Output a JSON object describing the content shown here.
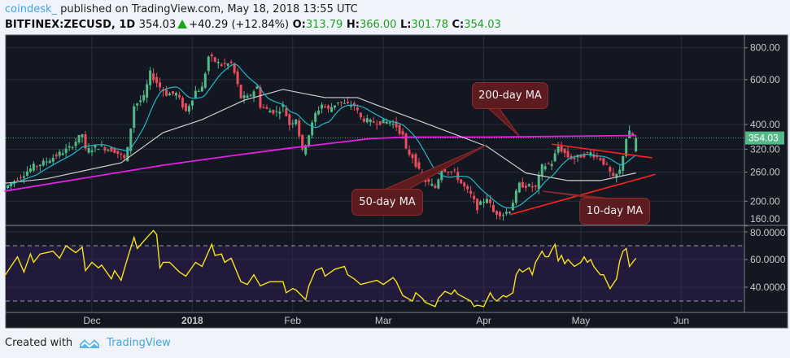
{
  "header": {
    "user": "coindesk_",
    "published": "published on TradingView.com, May 18, 2018 13:55 UTC",
    "symbol": "BITFINEX:ZECUSD, 1D",
    "last": "354.03",
    "change": "+40.29 (+12.84%)",
    "o_label": "O:",
    "o": "313.79",
    "h_label": "H:",
    "h": "366.00",
    "l_label": "L:",
    "l": "301.78",
    "c_label": "C:",
    "c": "354.03"
  },
  "annotations": {
    "ma200": "200-day MA",
    "ma50": "50-day MA",
    "ma10": "10-day MA"
  },
  "footer": {
    "created_with": "Created with",
    "brand": "TradingView"
  },
  "colors": {
    "up": "#53b987",
    "down": "#eb4d5c",
    "ma10": "#1fb8c6",
    "ma50": "#cfcfcf",
    "ma200": "#e61ee6",
    "rsi": "#f5e21b",
    "trendline": "#ff2020",
    "background": "#131722"
  },
  "chart_data": [
    {
      "type": "candlestick",
      "title": "",
      "y_scale": "log",
      "y_ticks": [
        "800.00",
        "600.00",
        "400.00",
        "320.00",
        "260.00",
        "200.00",
        "160.00"
      ],
      "x_ticks": [
        "Dec",
        "2018",
        "Feb",
        "Mar",
        "Apr",
        "May",
        "Jun"
      ],
      "last_price_label": "354.03",
      "grid": true,
      "closes": [
        [
          "2017-11-05",
          230
        ],
        [
          "2017-11-13",
          274
        ],
        [
          "2017-11-16",
          283
        ],
        [
          "2017-11-24",
          323
        ],
        [
          "2017-11-28",
          367
        ],
        [
          "2017-11-29",
          316
        ],
        [
          "2017-12-03",
          328
        ],
        [
          "2017-12-08",
          316
        ],
        [
          "2017-12-11",
          293
        ],
        [
          "2017-12-12",
          320
        ],
        [
          "2017-12-14",
          474
        ],
        [
          "2017-12-17",
          510
        ],
        [
          "2017-12-19",
          636
        ],
        [
          "2017-12-22",
          561
        ],
        [
          "2017-12-24",
          528
        ],
        [
          "2017-12-27",
          528
        ],
        [
          "2017-12-30",
          450
        ],
        [
          "2018-01-02",
          541
        ],
        [
          "2018-01-04",
          557
        ],
        [
          "2018-01-06",
          738
        ],
        [
          "2018-01-08",
          709
        ],
        [
          "2018-01-10",
          684
        ],
        [
          "2018-01-13",
          694
        ],
        [
          "2018-01-14",
          636
        ],
        [
          "2018-01-16",
          510
        ],
        [
          "2018-01-18",
          510
        ],
        [
          "2018-01-21",
          561
        ],
        [
          "2018-01-22",
          474
        ],
        [
          "2018-01-24",
          457
        ],
        [
          "2018-01-27",
          448
        ],
        [
          "2018-01-29",
          474
        ],
        [
          "2018-01-31",
          400
        ],
        [
          "2018-02-02",
          424
        ],
        [
          "2018-02-04",
          312
        ],
        [
          "2018-02-06",
          366
        ],
        [
          "2018-02-08",
          440
        ],
        [
          "2018-02-10",
          480
        ],
        [
          "2018-02-12",
          457
        ],
        [
          "2018-02-15",
          493
        ],
        [
          "2018-02-17",
          480
        ],
        [
          "2018-02-20",
          474
        ],
        [
          "2018-02-22",
          424
        ],
        [
          "2018-02-25",
          409
        ],
        [
          "2018-02-27",
          409
        ],
        [
          "2018-03-03",
          409
        ],
        [
          "2018-03-05",
          394
        ],
        [
          "2018-03-07",
          360
        ],
        [
          "2018-03-08",
          316
        ],
        [
          "2018-03-10",
          299
        ],
        [
          "2018-03-13",
          245
        ],
        [
          "2018-03-17",
          226
        ],
        [
          "2018-03-19",
          269
        ],
        [
          "2018-03-23",
          259
        ],
        [
          "2018-03-25",
          235
        ],
        [
          "2018-03-28",
          211
        ],
        [
          "2018-03-30",
          189
        ],
        [
          "2018-04-02",
          207
        ],
        [
          "2018-04-04",
          181
        ],
        [
          "2018-04-07",
          178
        ],
        [
          "2018-04-09",
          185
        ],
        [
          "2018-04-12",
          232
        ],
        [
          "2018-04-14",
          230
        ],
        [
          "2018-04-17",
          226
        ],
        [
          "2018-04-19",
          273
        ],
        [
          "2018-04-22",
          283
        ],
        [
          "2018-04-24",
          328
        ],
        [
          "2018-04-27",
          299
        ],
        [
          "2018-04-29",
          294
        ],
        [
          "2018-05-02",
          305
        ],
        [
          "2018-05-04",
          309
        ],
        [
          "2018-05-07",
          294
        ],
        [
          "2018-05-09",
          273
        ],
        [
          "2018-05-11",
          245
        ],
        [
          "2018-05-13",
          263
        ],
        [
          "2018-05-15",
          353
        ],
        [
          "2018-05-16",
          371
        ],
        [
          "2018-05-18",
          354.03
        ]
      ],
      "ma200": [
        [
          "2017-11-04",
          219
        ],
        [
          "2017-12-23",
          277
        ],
        [
          "2018-01-16",
          305
        ],
        [
          "2018-01-31",
          323
        ],
        [
          "2018-02-25",
          352
        ],
        [
          "2018-03-08",
          357
        ],
        [
          "2018-04-03",
          357
        ],
        [
          "2018-05-18",
          362
        ]
      ],
      "ma50": [
        [
          "2017-11-04",
          235
        ],
        [
          "2017-11-17",
          245
        ],
        [
          "2017-12-10",
          283
        ],
        [
          "2017-12-23",
          372
        ],
        [
          "2018-01-04",
          418
        ],
        [
          "2018-01-17",
          498
        ],
        [
          "2018-01-29",
          549
        ],
        [
          "2018-02-11",
          510
        ],
        [
          "2018-02-21",
          510
        ],
        [
          "2018-02-26",
          482
        ],
        [
          "2018-03-13",
          409
        ],
        [
          "2018-04-02",
          328
        ],
        [
          "2018-04-14",
          258
        ],
        [
          "2018-04-27",
          241
        ],
        [
          "2018-05-07",
          241
        ],
        [
          "2018-05-18",
          258
        ]
      ],
      "trendlines": [
        {
          "from": [
            "2018-04-22",
            335
          ],
          "to": [
            "2018-05-23",
            296
          ]
        },
        {
          "from": [
            "2018-04-09",
            177
          ],
          "to": [
            "2018-05-24",
            255
          ]
        }
      ]
    },
    {
      "type": "line",
      "title": "",
      "y_ticks": [
        "80.0000",
        "60.0000",
        "40.0000"
      ],
      "band": [
        30,
        70
      ],
      "values": [
        [
          "2017-11-04",
          48
        ],
        [
          "2017-11-08",
          62
        ],
        [
          "2017-11-10",
          51
        ],
        [
          "2017-11-12",
          64
        ],
        [
          "2017-11-13",
          58
        ],
        [
          "2017-11-15",
          64
        ],
        [
          "2017-11-19",
          66
        ],
        [
          "2017-11-21",
          61
        ],
        [
          "2017-11-23",
          70
        ],
        [
          "2017-11-26",
          65
        ],
        [
          "2017-11-28",
          69
        ],
        [
          "2017-11-29",
          52
        ],
        [
          "2017-12-01",
          58
        ],
        [
          "2017-12-03",
          54
        ],
        [
          "2017-12-04",
          56
        ],
        [
          "2017-12-07",
          46
        ],
        [
          "2017-12-08",
          52
        ],
        [
          "2017-12-10",
          45
        ],
        [
          "2017-12-12",
          61
        ],
        [
          "2017-12-14",
          76
        ],
        [
          "2017-12-15",
          68
        ],
        [
          "2017-12-18",
          76
        ],
        [
          "2017-12-20",
          81
        ],
        [
          "2017-12-21",
          78
        ],
        [
          "2017-12-22",
          54
        ],
        [
          "2017-12-23",
          58
        ],
        [
          "2017-12-25",
          58
        ],
        [
          "2017-12-28",
          51
        ],
        [
          "2017-12-30",
          48
        ],
        [
          "2018-01-02",
          58
        ],
        [
          "2018-01-04",
          55
        ],
        [
          "2018-01-07",
          71
        ],
        [
          "2018-01-08",
          63
        ],
        [
          "2018-01-10",
          64
        ],
        [
          "2018-01-11",
          58
        ],
        [
          "2018-01-13",
          61
        ],
        [
          "2018-01-16",
          44
        ],
        [
          "2018-01-18",
          42
        ],
        [
          "2018-01-20",
          49
        ],
        [
          "2018-01-22",
          41
        ],
        [
          "2018-01-25",
          44
        ],
        [
          "2018-01-29",
          44
        ],
        [
          "2018-01-30",
          36
        ],
        [
          "2018-02-01",
          39
        ],
        [
          "2018-02-02",
          38
        ],
        [
          "2018-02-05",
          31
        ],
        [
          "2018-02-06",
          41
        ],
        [
          "2018-02-08",
          52
        ],
        [
          "2018-02-10",
          54
        ],
        [
          "2018-02-11",
          48
        ],
        [
          "2018-02-14",
          53
        ],
        [
          "2018-02-17",
          55
        ],
        [
          "2018-02-18",
          49
        ],
        [
          "2018-02-20",
          46
        ],
        [
          "2018-02-22",
          42
        ],
        [
          "2018-02-27",
          45
        ],
        [
          "2018-03-01",
          42
        ],
        [
          "2018-03-04",
          47
        ],
        [
          "2018-03-05",
          44
        ],
        [
          "2018-03-07",
          34
        ],
        [
          "2018-03-10",
          30
        ],
        [
          "2018-03-11",
          36
        ],
        [
          "2018-03-13",
          32
        ],
        [
          "2018-03-14",
          29
        ],
        [
          "2018-03-17",
          26
        ],
        [
          "2018-03-18",
          32
        ],
        [
          "2018-03-20",
          37
        ],
        [
          "2018-03-22",
          35
        ],
        [
          "2018-03-23",
          38
        ],
        [
          "2018-03-24",
          35
        ],
        [
          "2018-03-28",
          30
        ],
        [
          "2018-03-29",
          26
        ],
        [
          "2018-03-30",
          27
        ],
        [
          "2018-04-01",
          26
        ],
        [
          "2018-04-03",
          36
        ],
        [
          "2018-04-04",
          32
        ],
        [
          "2018-04-05",
          30
        ],
        [
          "2018-04-07",
          34
        ],
        [
          "2018-04-08",
          33
        ],
        [
          "2018-04-10",
          36
        ],
        [
          "2018-04-11",
          49
        ],
        [
          "2018-04-12",
          53
        ],
        [
          "2018-04-13",
          51
        ],
        [
          "2018-04-15",
          54
        ],
        [
          "2018-04-16",
          49
        ],
        [
          "2018-04-17",
          58
        ],
        [
          "2018-04-19",
          66
        ],
        [
          "2018-04-20",
          62
        ],
        [
          "2018-04-21",
          62
        ],
        [
          "2018-04-22",
          67
        ],
        [
          "2018-04-23",
          71
        ],
        [
          "2018-04-24",
          59
        ],
        [
          "2018-04-25",
          63
        ],
        [
          "2018-04-26",
          57
        ],
        [
          "2018-04-27",
          60
        ],
        [
          "2018-04-29",
          55
        ],
        [
          "2018-05-01",
          58
        ],
        [
          "2018-05-02",
          62
        ],
        [
          "2018-05-03",
          58
        ],
        [
          "2018-05-04",
          60
        ],
        [
          "2018-05-05",
          55
        ],
        [
          "2018-05-07",
          49
        ],
        [
          "2018-05-08",
          49
        ],
        [
          "2018-05-10",
          39
        ],
        [
          "2018-05-12",
          46
        ],
        [
          "2018-05-13",
          59
        ],
        [
          "2018-05-14",
          66
        ],
        [
          "2018-05-15",
          68
        ],
        [
          "2018-05-16",
          55
        ],
        [
          "2018-05-18",
          61
        ]
      ]
    }
  ]
}
